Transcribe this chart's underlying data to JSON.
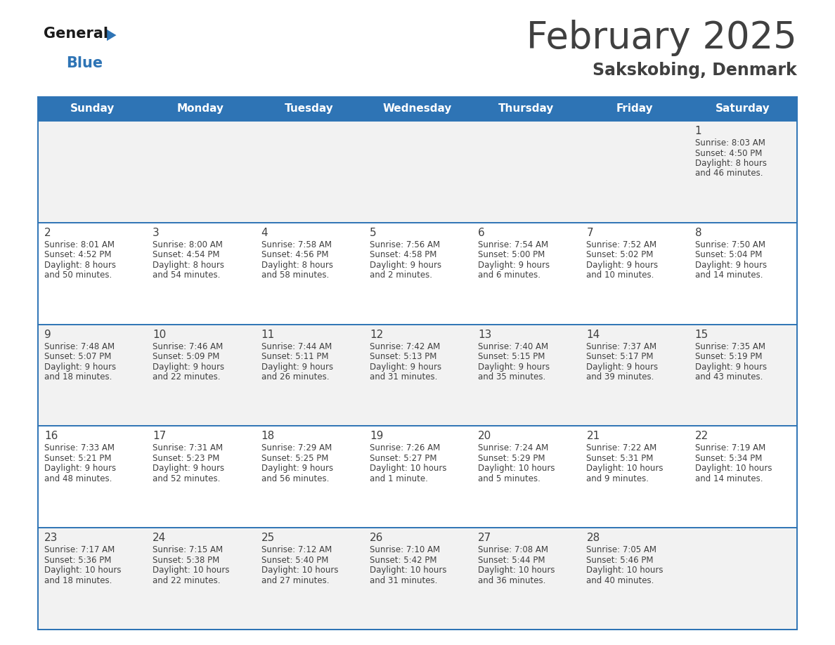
{
  "title": "February 2025",
  "subtitle": "Sakskobing, Denmark",
  "header_bg": "#2E74B5",
  "header_text_color": "#FFFFFF",
  "cell_bg_odd": "#F2F2F2",
  "cell_bg_even": "#FFFFFF",
  "border_color": "#2E74B5",
  "text_color": "#404040",
  "logo_text_color": "#1a1a1a",
  "logo_blue_color": "#2E74B5",
  "days_of_week": [
    "Sunday",
    "Monday",
    "Tuesday",
    "Wednesday",
    "Thursday",
    "Friday",
    "Saturday"
  ],
  "calendar_data": [
    [
      {
        "day": null,
        "sunrise": null,
        "sunset": null,
        "daylight_line1": null,
        "daylight_line2": null
      },
      {
        "day": null,
        "sunrise": null,
        "sunset": null,
        "daylight_line1": null,
        "daylight_line2": null
      },
      {
        "day": null,
        "sunrise": null,
        "sunset": null,
        "daylight_line1": null,
        "daylight_line2": null
      },
      {
        "day": null,
        "sunrise": null,
        "sunset": null,
        "daylight_line1": null,
        "daylight_line2": null
      },
      {
        "day": null,
        "sunrise": null,
        "sunset": null,
        "daylight_line1": null,
        "daylight_line2": null
      },
      {
        "day": null,
        "sunrise": null,
        "sunset": null,
        "daylight_line1": null,
        "daylight_line2": null
      },
      {
        "day": 1,
        "sunrise": "Sunrise: 8:03 AM",
        "sunset": "Sunset: 4:50 PM",
        "daylight_line1": "Daylight: 8 hours",
        "daylight_line2": "and 46 minutes."
      }
    ],
    [
      {
        "day": 2,
        "sunrise": "Sunrise: 8:01 AM",
        "sunset": "Sunset: 4:52 PM",
        "daylight_line1": "Daylight: 8 hours",
        "daylight_line2": "and 50 minutes."
      },
      {
        "day": 3,
        "sunrise": "Sunrise: 8:00 AM",
        "sunset": "Sunset: 4:54 PM",
        "daylight_line1": "Daylight: 8 hours",
        "daylight_line2": "and 54 minutes."
      },
      {
        "day": 4,
        "sunrise": "Sunrise: 7:58 AM",
        "sunset": "Sunset: 4:56 PM",
        "daylight_line1": "Daylight: 8 hours",
        "daylight_line2": "and 58 minutes."
      },
      {
        "day": 5,
        "sunrise": "Sunrise: 7:56 AM",
        "sunset": "Sunset: 4:58 PM",
        "daylight_line1": "Daylight: 9 hours",
        "daylight_line2": "and 2 minutes."
      },
      {
        "day": 6,
        "sunrise": "Sunrise: 7:54 AM",
        "sunset": "Sunset: 5:00 PM",
        "daylight_line1": "Daylight: 9 hours",
        "daylight_line2": "and 6 minutes."
      },
      {
        "day": 7,
        "sunrise": "Sunrise: 7:52 AM",
        "sunset": "Sunset: 5:02 PM",
        "daylight_line1": "Daylight: 9 hours",
        "daylight_line2": "and 10 minutes."
      },
      {
        "day": 8,
        "sunrise": "Sunrise: 7:50 AM",
        "sunset": "Sunset: 5:04 PM",
        "daylight_line1": "Daylight: 9 hours",
        "daylight_line2": "and 14 minutes."
      }
    ],
    [
      {
        "day": 9,
        "sunrise": "Sunrise: 7:48 AM",
        "sunset": "Sunset: 5:07 PM",
        "daylight_line1": "Daylight: 9 hours",
        "daylight_line2": "and 18 minutes."
      },
      {
        "day": 10,
        "sunrise": "Sunrise: 7:46 AM",
        "sunset": "Sunset: 5:09 PM",
        "daylight_line1": "Daylight: 9 hours",
        "daylight_line2": "and 22 minutes."
      },
      {
        "day": 11,
        "sunrise": "Sunrise: 7:44 AM",
        "sunset": "Sunset: 5:11 PM",
        "daylight_line1": "Daylight: 9 hours",
        "daylight_line2": "and 26 minutes."
      },
      {
        "day": 12,
        "sunrise": "Sunrise: 7:42 AM",
        "sunset": "Sunset: 5:13 PM",
        "daylight_line1": "Daylight: 9 hours",
        "daylight_line2": "and 31 minutes."
      },
      {
        "day": 13,
        "sunrise": "Sunrise: 7:40 AM",
        "sunset": "Sunset: 5:15 PM",
        "daylight_line1": "Daylight: 9 hours",
        "daylight_line2": "and 35 minutes."
      },
      {
        "day": 14,
        "sunrise": "Sunrise: 7:37 AM",
        "sunset": "Sunset: 5:17 PM",
        "daylight_line1": "Daylight: 9 hours",
        "daylight_line2": "and 39 minutes."
      },
      {
        "day": 15,
        "sunrise": "Sunrise: 7:35 AM",
        "sunset": "Sunset: 5:19 PM",
        "daylight_line1": "Daylight: 9 hours",
        "daylight_line2": "and 43 minutes."
      }
    ],
    [
      {
        "day": 16,
        "sunrise": "Sunrise: 7:33 AM",
        "sunset": "Sunset: 5:21 PM",
        "daylight_line1": "Daylight: 9 hours",
        "daylight_line2": "and 48 minutes."
      },
      {
        "day": 17,
        "sunrise": "Sunrise: 7:31 AM",
        "sunset": "Sunset: 5:23 PM",
        "daylight_line1": "Daylight: 9 hours",
        "daylight_line2": "and 52 minutes."
      },
      {
        "day": 18,
        "sunrise": "Sunrise: 7:29 AM",
        "sunset": "Sunset: 5:25 PM",
        "daylight_line1": "Daylight: 9 hours",
        "daylight_line2": "and 56 minutes."
      },
      {
        "day": 19,
        "sunrise": "Sunrise: 7:26 AM",
        "sunset": "Sunset: 5:27 PM",
        "daylight_line1": "Daylight: 10 hours",
        "daylight_line2": "and 1 minute."
      },
      {
        "day": 20,
        "sunrise": "Sunrise: 7:24 AM",
        "sunset": "Sunset: 5:29 PM",
        "daylight_line1": "Daylight: 10 hours",
        "daylight_line2": "and 5 minutes."
      },
      {
        "day": 21,
        "sunrise": "Sunrise: 7:22 AM",
        "sunset": "Sunset: 5:31 PM",
        "daylight_line1": "Daylight: 10 hours",
        "daylight_line2": "and 9 minutes."
      },
      {
        "day": 22,
        "sunrise": "Sunrise: 7:19 AM",
        "sunset": "Sunset: 5:34 PM",
        "daylight_line1": "Daylight: 10 hours",
        "daylight_line2": "and 14 minutes."
      }
    ],
    [
      {
        "day": 23,
        "sunrise": "Sunrise: 7:17 AM",
        "sunset": "Sunset: 5:36 PM",
        "daylight_line1": "Daylight: 10 hours",
        "daylight_line2": "and 18 minutes."
      },
      {
        "day": 24,
        "sunrise": "Sunrise: 7:15 AM",
        "sunset": "Sunset: 5:38 PM",
        "daylight_line1": "Daylight: 10 hours",
        "daylight_line2": "and 22 minutes."
      },
      {
        "day": 25,
        "sunrise": "Sunrise: 7:12 AM",
        "sunset": "Sunset: 5:40 PM",
        "daylight_line1": "Daylight: 10 hours",
        "daylight_line2": "and 27 minutes."
      },
      {
        "day": 26,
        "sunrise": "Sunrise: 7:10 AM",
        "sunset": "Sunset: 5:42 PM",
        "daylight_line1": "Daylight: 10 hours",
        "daylight_line2": "and 31 minutes."
      },
      {
        "day": 27,
        "sunrise": "Sunrise: 7:08 AM",
        "sunset": "Sunset: 5:44 PM",
        "daylight_line1": "Daylight: 10 hours",
        "daylight_line2": "and 36 minutes."
      },
      {
        "day": 28,
        "sunrise": "Sunrise: 7:05 AM",
        "sunset": "Sunset: 5:46 PM",
        "daylight_line1": "Daylight: 10 hours",
        "daylight_line2": "and 40 minutes."
      },
      {
        "day": null,
        "sunrise": null,
        "sunset": null,
        "daylight_line1": null,
        "daylight_line2": null
      }
    ]
  ],
  "fig_width": 11.88,
  "fig_height": 9.18,
  "dpi": 100
}
